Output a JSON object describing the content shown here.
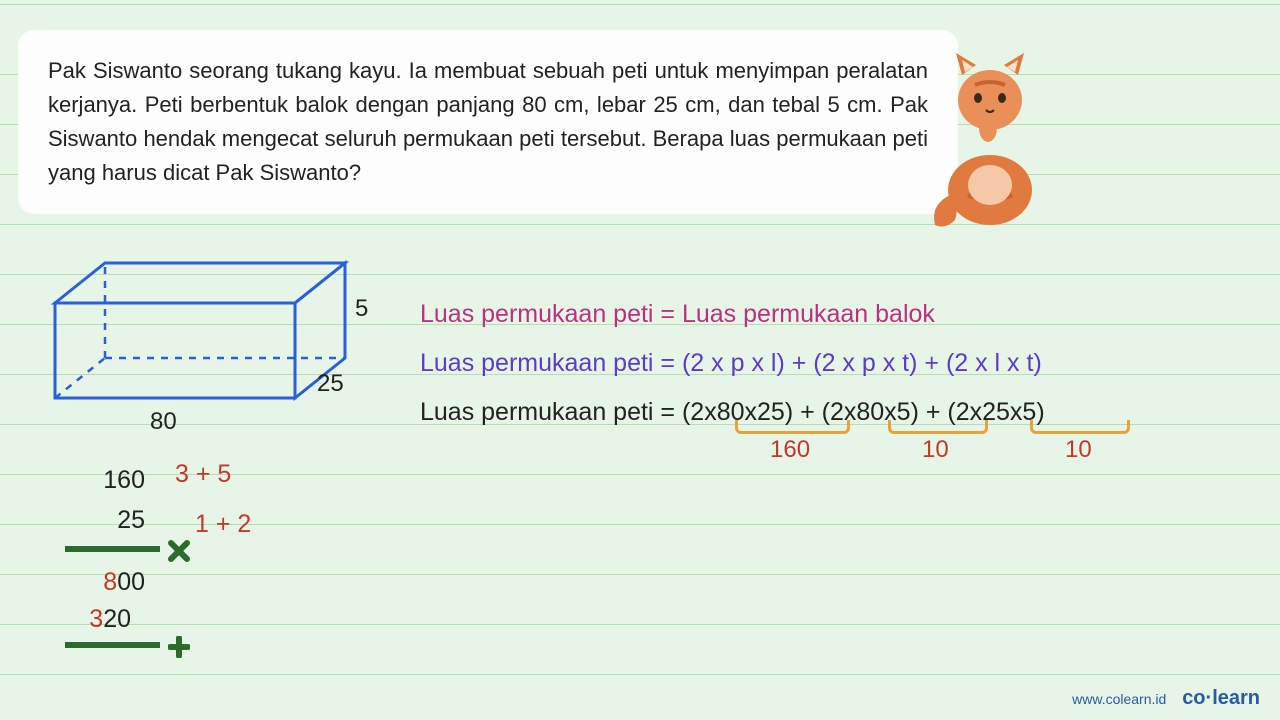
{
  "question": "Pak Siswanto seorang tukang kayu. Ia membuat sebuah peti untuk menyimpan peralatan kerjanya. Peti berbentuk balok dengan panjang 80 cm, lebar 25 cm, dan tebal 5 cm. Pak Siswanto hendak mengecat seluruh permukaan peti tersebut. Berapa luas permukaan peti yang harus dicat Pak Siswanto?",
  "cuboid": {
    "stroke": "#2a5fd8",
    "stroke_width": 3,
    "dims": {
      "p": "80",
      "l": "25",
      "t": "5"
    }
  },
  "formulas": {
    "line1": "Luas permukaan peti = Luas permukaan balok",
    "line2": "Luas permukaan peti = (2 x p x l) + (2 x p x t) + (2 x l x t)",
    "line3": "Luas permukaan peti = (2x80x25) + (2x80x5) + (2x25x5)",
    "colors": {
      "line1": "#b83280",
      "line2": "#5b3dc4",
      "line3": "#222222"
    }
  },
  "brackets": {
    "b1": "160",
    "b2": "10",
    "b3": "10",
    "color": "#c0392b",
    "bracket_color": "#e8a23a"
  },
  "calc": {
    "n1": "160",
    "n2": "25",
    "r1_a": "8",
    "r1_b": "00",
    "r2_a": "3",
    "r2_b": "20",
    "extra1": "3 + 5",
    "extra2": "1 + 2",
    "line_color": "#2d6b2d",
    "mult_color": "#2d6b2d",
    "plus_color": "#2d6b2d"
  },
  "footer": {
    "url": "www.colearn.id",
    "brand": "co·learn"
  }
}
